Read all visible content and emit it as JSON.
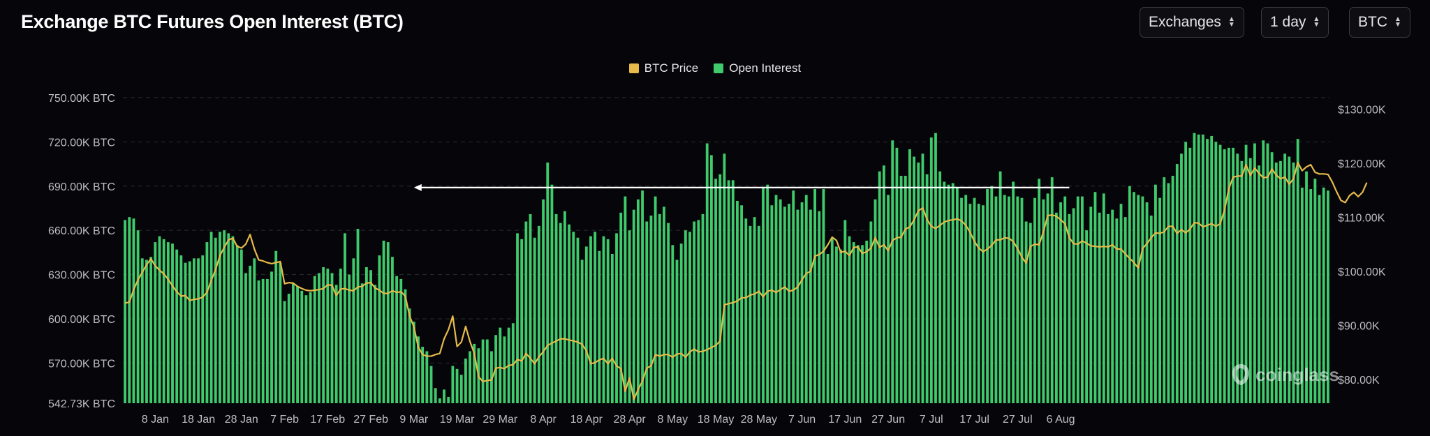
{
  "header": {
    "title": "Exchange BTC Futures Open Interest (BTC)",
    "selects": [
      {
        "label": "Exchanges"
      },
      {
        "label": "1 day"
      },
      {
        "label": "BTC"
      }
    ]
  },
  "brand": {
    "name": "coinglass",
    "icon": "coinglass-logo-icon"
  },
  "colors": {
    "price": "#e7bb4a",
    "oi": "#3fca6b",
    "background": "#06060a",
    "marker": "#ffffff"
  },
  "chart_data": {
    "type": "bar",
    "title": "Exchange BTC Futures Open Interest (BTC)",
    "legend": [
      "BTC Price",
      "Open Interest"
    ],
    "legend_position": "top-center",
    "grid": true,
    "x_ticks": [
      "8 Jan",
      "18 Jan",
      "28 Jan",
      "7 Feb",
      "17 Feb",
      "27 Feb",
      "9 Mar",
      "19 Mar",
      "29 Mar",
      "8 Apr",
      "18 Apr",
      "28 Apr",
      "8 May",
      "18 May",
      "28 May",
      "7 Jun",
      "17 Jun",
      "27 Jun",
      "7 Jul",
      "17 Jul",
      "27 Jul",
      "6 Aug"
    ],
    "x_start_day": "2025-01-01",
    "y_left": {
      "ticks": [
        "750.00K BTC",
        "720.00K BTC",
        "690.00K BTC",
        "660.00K BTC",
        "630.00K BTC",
        "600.00K BTC",
        "570.00K BTC",
        "542.73K BTC"
      ],
      "range": [
        542.73,
        750.0
      ],
      "unit": "K BTC"
    },
    "y_right": {
      "ticks": [
        "$130.00K",
        "$120.00K",
        "$110.00K",
        "$100.00K",
        "$90.00K",
        "$80.00K"
      ],
      "range": [
        75.6,
        132.1
      ],
      "unit": "K USD"
    },
    "reference_line": {
      "y": 689,
      "axis": "left",
      "from": "2025-03-09",
      "to": "2025-08-08",
      "arrow": "left"
    },
    "series": [
      {
        "name": "Open Interest",
        "axis": "left",
        "values": [
          667,
          669,
          668,
          660,
          641,
          640,
          642,
          652,
          656,
          654,
          652,
          651,
          647,
          643,
          638,
          639,
          641,
          641,
          643,
          652,
          659,
          655,
          659,
          660,
          658,
          656,
          650,
          647,
          631,
          636,
          641,
          626,
          627,
          627,
          632,
          646,
          638,
          612,
          617,
          624,
          622,
          619,
          616,
          618,
          629,
          631,
          635,
          634,
          631,
          623,
          634,
          658,
          630,
          641,
          661,
          624,
          635,
          633,
          623,
          643,
          653,
          652,
          642,
          629,
          627,
          620,
          607,
          598,
          588,
          581,
          578,
          568,
          553,
          546,
          552,
          547,
          568,
          566,
          562,
          573,
          578,
          583,
          580,
          586,
          586,
          578,
          589,
          594,
          588,
          594,
          597,
          658,
          654,
          666,
          671,
          655,
          663,
          681,
          706,
          691,
          671,
          665,
          673,
          664,
          659,
          655,
          640,
          649,
          656,
          659,
          646,
          656,
          654,
          644,
          658,
          672,
          683,
          660,
          674,
          681,
          687,
          666,
          670,
          683,
          671,
          676,
          665,
          650,
          640,
          651,
          660,
          659,
          666,
          667,
          671,
          719,
          711,
          695,
          698,
          712,
          694,
          694,
          680,
          677,
          668,
          663,
          669,
          663,
          689,
          691,
          677,
          684,
          681,
          676,
          678,
          687,
          674,
          679,
          684,
          674,
          688,
          673,
          688,
          644,
          655,
          649,
          647,
          667,
          656,
          652,
          650,
          650,
          653,
          666,
          681,
          700,
          704,
          684,
          721,
          716,
          697,
          697,
          715,
          710,
          706,
          712,
          698,
          723,
          726,
          700,
          693,
          691,
          692,
          689,
          682,
          684,
          678,
          682,
          678,
          677,
          688,
          690,
          683,
          700,
          684,
          683,
          693,
          683,
          682,
          666,
          665,
          682,
          695,
          681,
          685,
          696,
          672,
          679,
          683,
          671,
          675,
          683,
          683,
          660,
          676,
          686,
          672,
          685,
          671,
          674,
          668,
          678,
          669,
          690,
          686,
          684,
          683,
          679,
          670,
          691,
          682,
          696,
          692,
          697,
          705,
          712,
          720,
          716,
          726,
          725,
          725,
          722,
          724,
          720,
          718,
          715,
          716,
          716,
          712,
          707,
          718,
          709,
          719,
          704,
          721,
          719,
          713,
          706,
          707,
          712,
          710,
          706,
          722,
          689,
          700,
          688,
          695,
          684,
          689,
          687
        ]
      },
      {
        "name": "BTC Price",
        "axis": "right",
        "values": [
          94.1,
          94.3,
          96.6,
          98.4,
          99.8,
          101.2,
          102.3,
          101.0,
          100.2,
          99.5,
          98.5,
          97.3,
          96.2,
          95.4,
          95.5,
          94.6,
          94.8,
          94.9,
          95.2,
          96.1,
          98.3,
          100.3,
          102.9,
          104.4,
          105.8,
          106.1,
          104.6,
          104.3,
          105.0,
          106.8,
          104.1,
          102.1,
          101.9,
          101.6,
          101.4,
          101.6,
          101.8,
          97.7,
          97.9,
          97.8,
          97.2,
          96.8,
          96.5,
          96.4,
          96.5,
          96.6,
          96.8,
          97.5,
          97.4,
          95.5,
          96.7,
          96.8,
          96.5,
          96.4,
          97.1,
          97.2,
          97.8,
          97.9,
          96.9,
          96.5,
          95.9,
          95.9,
          96.4,
          96.1,
          96.2,
          95.4,
          91.7,
          89.7,
          86.0,
          84.6,
          84.3,
          84.3,
          84.6,
          84.8,
          87.5,
          89.2,
          91.7,
          86.1,
          86.9,
          89.8,
          87.0,
          84.8,
          80.5,
          79.6,
          79.8,
          79.9,
          82.1,
          82.2,
          82.0,
          82.6,
          82.7,
          83.7,
          83.4,
          84.8,
          83.9,
          82.9,
          84.2,
          85.1,
          86.3,
          86.7,
          87.1,
          87.5,
          87.5,
          87.3,
          87.1,
          86.9,
          86.5,
          85.3,
          82.9,
          83.1,
          83.6,
          83.9,
          82.9,
          83.9,
          82.5,
          82.0,
          77.8,
          80.3,
          76.3,
          78.1,
          79.7,
          82.1,
          82.5,
          84.6,
          84.3,
          84.6,
          84.6,
          84.1,
          84.7,
          84.8,
          84.1,
          85.1,
          85.6,
          85.1,
          85.2,
          85.5,
          85.9,
          86.3,
          87.1,
          93.8,
          94.0,
          94.2,
          94.5,
          95.1,
          95.1,
          95.6,
          95.8,
          96.3,
          95.3,
          96.3,
          96.5,
          96.1,
          96.6,
          97.1,
          96.3,
          96.5,
          97.1,
          98.4,
          99.6,
          100.0,
          102.8,
          103.1,
          103.7,
          104.9,
          106.3,
          105.7,
          103.5,
          103.7,
          102.9,
          104.4,
          104.5,
          103.3,
          103.6,
          104.3,
          106.2,
          104.4,
          104.9,
          103.8,
          105.7,
          106.2,
          106.3,
          107.8,
          108.2,
          109.5,
          111.2,
          111.7,
          109.6,
          108.3,
          107.9,
          108.5,
          109.1,
          109.4,
          109.5,
          109.7,
          109.3,
          108.5,
          107.2,
          105.5,
          104.3,
          103.6,
          104.1,
          104.8,
          105.8,
          105.8,
          106.2,
          106.1,
          105.5,
          104.2,
          102.6,
          101.5,
          104.6,
          105.0,
          104.9,
          107.3,
          110.3,
          110.4,
          110.2,
          109.5,
          108.8,
          106.2,
          105.1,
          105.0,
          105.6,
          105.2,
          104.7,
          104.6,
          104.5,
          104.6,
          104.5,
          104.9,
          104.1,
          104.1,
          103.2,
          102.4,
          101.6,
          100.6,
          104.2,
          105.1,
          106.2,
          107.1,
          107.0,
          107.3,
          108.3,
          108.3,
          107.0,
          107.7,
          107.1,
          107.8,
          109.0,
          108.9,
          108.2,
          108.5,
          108.8,
          108.3,
          108.8,
          111.3,
          115.3,
          117.4,
          117.6,
          117.6,
          119.7,
          117.7,
          119.1,
          118.1,
          117.3,
          117.4,
          118.9,
          117.8,
          117.1,
          117.4,
          116.1,
          117.1,
          120.1,
          118.6,
          119.3,
          119.7,
          118.3,
          118.0,
          118.0,
          117.9,
          116.5,
          114.7,
          113.1,
          112.7,
          114.0,
          114.6,
          113.8,
          114.6,
          116.4
        ]
      }
    ]
  }
}
